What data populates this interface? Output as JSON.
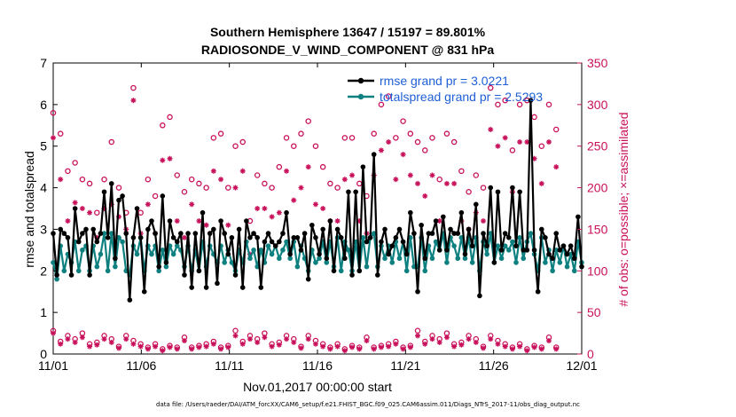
{
  "chart_data": {
    "type": "line",
    "title_line1": "Southern Hemisphere 13647 / 15197 = 89.801%",
    "title_line2": "RADIOSONDE_V_WIND_COMPONENT @ 831 hPa",
    "xlabel": "Nov.01,2017 00:00:00 start",
    "ylabel": "rmse and totalspread",
    "y2label": "# of obs: o=possible; ×=assimilated",
    "footnote": "data file: /Users/raeder/DAI/ATM_forcXX/CAM6_setup/f.e21.FHIST_BGC.f09_025.CAM6assim.011/Diags_NTrS_2017-11/obs_diag_output.nc",
    "x_tick_labels": [
      "11/01",
      "11/06",
      "11/11",
      "11/16",
      "11/21",
      "11/26",
      "12/01"
    ],
    "x_tick_days": [
      0,
      5,
      10,
      15,
      20,
      25,
      30
    ],
    "xlim": [
      0,
      30
    ],
    "ylim": [
      0,
      7
    ],
    "y_ticks": [
      0,
      1,
      2,
      3,
      4,
      5,
      6,
      7
    ],
    "y2lim": [
      0,
      350
    ],
    "y2_ticks": [
      0,
      50,
      100,
      150,
      200,
      250,
      300,
      350
    ],
    "colors": {
      "rmse": "#000000",
      "spread": "#0e8080",
      "obs": "#c8105a",
      "legend_text": "#1f5fd6"
    },
    "legend": [
      "rmse grand pr = 3.0221",
      "totalspread grand pr = 2.5293"
    ],
    "series": [
      {
        "name": "rmse",
        "values": [
          2.9,
          1.9,
          3.0,
          2.9,
          2.8,
          1.9,
          3.5,
          2.7,
          2.9,
          3.0,
          1.9,
          3.0,
          2.7,
          2.9,
          3.9,
          2.8,
          4.1,
          2.3,
          3.7,
          3.8,
          2.9,
          1.3,
          2.8,
          3.5,
          2.8,
          1.5,
          3.0,
          3.2,
          2.9,
          2.1,
          3.8,
          2.2,
          3.2,
          2.8,
          2.7,
          2.9,
          1.9,
          2.9,
          1.6,
          2.9,
          2.0,
          3.4,
          1.6,
          2.9,
          3.0,
          1.7,
          3.2,
          2.9,
          2.4,
          2.8,
          1.9,
          3.0,
          1.6,
          3.2,
          2.8,
          2.9,
          2.8,
          1.6,
          2.7,
          2.9,
          2.7,
          2.6,
          2.7,
          2.9,
          3.4,
          2.4,
          2.8,
          2.8,
          2.5,
          2.9,
          1.8,
          3.1,
          2.8,
          2.4,
          3.0,
          2.3,
          3.2,
          2.0,
          3.0,
          2.8,
          2.3,
          3.9,
          1.9,
          3.9,
          2.0,
          4.5,
          2.7,
          2.8,
          4.8,
          1.9,
          2.7,
          3.0,
          2.4,
          2.6,
          2.8,
          3.0,
          2.7,
          2.4,
          3.4,
          2.9,
          1.5,
          3.1,
          2.3,
          2.9,
          2.9,
          3.2,
          2.5,
          3.3,
          2.5,
          3.0,
          2.9,
          2.9,
          3.4,
          2.4,
          3.0,
          2.6,
          3.6,
          1.4,
          2.9,
          2.6,
          4.0,
          2.2,
          3.9,
          2.5,
          2.9,
          2.8,
          4.0,
          2.6,
          3.9,
          2.5,
          2.5,
          6.1,
          2.5,
          1.5,
          3.0,
          2.8,
          2.4,
          2.3,
          2.9,
          2.5,
          2.6,
          2.4,
          2.6,
          2.3,
          3.3,
          2.1
        ]
      },
      {
        "name": "totalspread",
        "values": [
          2.2,
          1.8,
          2.6,
          2.0,
          2.4,
          2.2,
          2.7,
          2.0,
          2.5,
          2.6,
          2.0,
          2.6,
          2.1,
          2.4,
          2.9,
          2.0,
          2.9,
          2.1,
          2.8,
          2.7,
          2.0,
          1.9,
          2.6,
          2.4,
          2.8,
          2.0,
          2.6,
          2.4,
          2.6,
          2.0,
          2.5,
          2.1,
          2.6,
          2.4,
          2.6,
          2.5,
          2.1,
          2.6,
          2.0,
          2.5,
          2.0,
          2.7,
          2.1,
          2.6,
          2.4,
          2.2,
          2.6,
          2.2,
          2.5,
          2.2,
          2.0,
          2.5,
          2.2,
          2.7,
          2.3,
          2.5,
          2.1,
          2.5,
          2.2,
          2.6,
          2.4,
          2.6,
          2.3,
          2.5,
          2.7,
          2.3,
          2.7,
          2.1,
          2.6,
          2.3,
          2.0,
          2.5,
          2.2,
          2.3,
          2.7,
          2.2,
          2.7,
          2.1,
          2.8,
          2.0,
          2.7,
          2.5,
          2.0,
          2.7,
          2.0,
          2.8,
          2.1,
          2.8,
          2.9,
          2.1,
          2.6,
          2.3,
          2.6,
          2.2,
          2.7,
          2.3,
          2.7,
          2.0,
          2.8,
          2.1,
          2.1,
          2.8,
          2.0,
          2.6,
          2.3,
          2.7,
          2.5,
          2.9,
          2.2,
          2.8,
          2.6,
          2.3,
          2.8,
          2.3,
          2.8,
          2.2,
          2.8,
          2.0,
          2.7,
          2.4,
          2.9,
          2.2,
          2.6,
          2.3,
          2.6,
          2.5,
          2.7,
          2.2,
          2.8,
          2.3,
          2.7,
          2.9,
          2.4,
          2.0,
          2.8,
          2.2,
          2.5,
          2.0,
          2.5,
          2.2,
          2.6,
          2.1,
          2.4,
          2.0,
          2.7,
          2.2
        ]
      },
      {
        "name": "obs_possible",
        "values": [
          290,
          235,
          265,
          295,
          220,
          195,
          230,
          175,
          210,
          258,
          205,
          250,
          170,
          258,
          210,
          165,
          255,
          205,
          200,
          190,
          170,
          245,
          320,
          200,
          170,
          295,
          210,
          285,
          190,
          170,
          275,
          195,
          285,
          185,
          215,
          260,
          195,
          285,
          210,
          245,
          205,
          270,
          200,
          190,
          260,
          205,
          265,
          240,
          200,
          215,
          250,
          195,
          255,
          200,
          160,
          270,
          215,
          275,
          205,
          240,
          200,
          290,
          225,
          225,
          260,
          210,
          250,
          195,
          265,
          225,
          280,
          225,
          250,
          230,
          225,
          245,
          205,
          240,
          200,
          215,
          260,
          200,
          260,
          300,
          205,
          275,
          190,
          255,
          265,
          215,
          300,
          230,
          310,
          195,
          260,
          230,
          280,
          215,
          265,
          200,
          255,
          200,
          245,
          195,
          260,
          200,
          210,
          175,
          265,
          210,
          255,
          245,
          220,
          245,
          195,
          260,
          215,
          260,
          200,
          195,
          320,
          215,
          300,
          215,
          305,
          190,
          245,
          250,
          300,
          220,
          305,
          210,
          285,
          210,
          250,
          205,
          300,
          195,
          270,
          205
        ]
      },
      {
        "name": "obs_assimilated",
        "values": [
          260,
          192,
          210,
          270,
          160,
          170,
          182,
          145,
          175,
          210,
          170,
          190,
          140,
          160,
          175,
          125,
          180,
          160,
          165,
          140,
          150,
          185,
          305,
          165,
          145,
          230,
          180,
          220,
          145,
          140,
          233,
          140,
          235,
          140,
          160,
          200,
          140,
          235,
          180,
          205,
          160,
          220,
          155,
          145,
          220,
          160,
          210,
          180,
          155,
          175,
          200,
          148,
          220,
          160,
          120,
          215,
          175,
          225,
          175,
          185,
          165,
          230,
          170,
          175,
          220,
          165,
          185,
          145,
          200,
          165,
          225,
          170,
          180,
          190,
          175,
          195,
          160,
          195,
          160,
          175,
          210,
          155,
          215,
          245,
          160,
          230,
          145,
          210,
          215,
          175,
          245,
          185,
          255,
          145,
          210,
          180,
          240,
          170,
          215,
          150,
          205,
          150,
          190,
          150,
          215,
          155,
          160,
          140,
          205,
          160,
          205,
          190,
          160,
          190,
          150,
          205,
          170,
          215,
          160,
          150,
          270,
          160,
          250,
          160,
          260,
          140,
          195,
          205,
          255,
          165,
          255,
          160,
          235,
          160,
          205,
          150,
          255,
          150,
          225,
          150
        ]
      },
      {
        "name": "obs_possible_low",
        "values": [
          28,
          8,
          15,
          12,
          22,
          6,
          18,
          10,
          25,
          8,
          12,
          20,
          14,
          8,
          22,
          10,
          18,
          12,
          9,
          15,
          22,
          8,
          16,
          10,
          12,
          28,
          8,
          15,
          12,
          22,
          6,
          18,
          10,
          25,
          8,
          12,
          20,
          14,
          8,
          22,
          10,
          18,
          12,
          9,
          15,
          22,
          8,
          16,
          10,
          12,
          28,
          8,
          15,
          12,
          22,
          6,
          18,
          10,
          25,
          8,
          12,
          20,
          14,
          8,
          22,
          10,
          18,
          12,
          9,
          15,
          22,
          8,
          16,
          10,
          12,
          28,
          8,
          15,
          12,
          22,
          6,
          18,
          10,
          25,
          8,
          12,
          20,
          14,
          8,
          22,
          10,
          18,
          12,
          9,
          15,
          22,
          8,
          16,
          10,
          12,
          28,
          8,
          15,
          12,
          22,
          6,
          18,
          10,
          25,
          8,
          12,
          20,
          14,
          8,
          22,
          10,
          18,
          12,
          9,
          15,
          22,
          8,
          16,
          10,
          12,
          28,
          8,
          15,
          12,
          22,
          6,
          18,
          10,
          25,
          8,
          12,
          20,
          14,
          8,
          22
        ]
      },
      {
        "name": "obs_assimilated_low",
        "values": [
          25,
          6,
          12,
          10,
          18,
          4,
          14,
          8,
          20,
          6,
          9,
          16,
          11,
          6,
          18,
          8,
          14,
          9,
          7,
          12,
          18,
          6,
          12,
          8,
          9,
          22,
          6,
          12,
          9,
          18,
          4,
          14,
          8,
          20,
          6,
          9,
          16,
          11,
          6,
          18,
          8,
          14,
          9,
          7,
          12,
          18,
          6,
          12,
          8,
          9,
          22,
          6,
          12,
          9,
          18,
          4,
          14,
          8,
          20,
          6,
          9,
          16,
          11,
          6,
          18,
          8,
          14,
          9,
          7,
          12,
          18,
          6,
          12,
          8,
          9,
          22,
          6,
          12,
          9,
          18,
          4,
          14,
          8,
          20,
          6,
          9,
          16,
          11,
          6,
          18,
          8,
          14,
          9,
          7,
          12,
          18,
          6,
          12,
          8,
          9,
          22,
          6,
          12,
          9,
          18,
          4,
          14,
          8,
          20,
          6,
          9,
          16,
          11,
          6,
          18,
          8,
          14,
          9,
          7,
          12,
          18,
          6,
          12,
          8,
          9,
          22,
          6,
          12,
          9,
          18,
          4,
          14,
          8,
          20,
          6,
          9,
          16,
          11,
          6,
          18
        ]
      }
    ]
  }
}
